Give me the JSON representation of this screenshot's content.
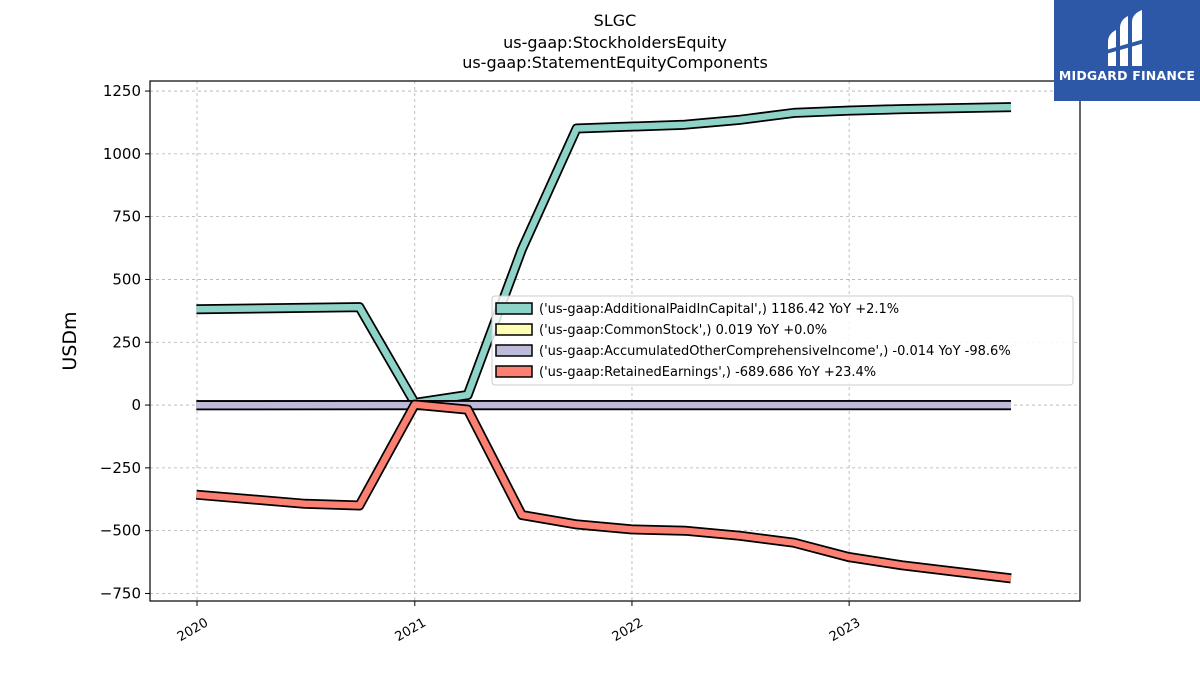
{
  "titles": [
    "SLGC",
    "us-gaap:StockholdersEquity",
    "us-gaap:StatementEquityComponents"
  ],
  "logo": {
    "name": "MIDGARD FINANCE",
    "icon": "midgard-logo-icon",
    "background": "#2d58a8"
  },
  "chart_data": {
    "type": "line",
    "title": "SLGC\nus-gaap:StockholdersEquity\nus-gaap:StatementEquityComponents",
    "ylabel": "USDm",
    "xlabel": "",
    "ylim": [
      -780,
      1290
    ],
    "xlim": [
      "2019-10-14",
      "2024-01-24"
    ],
    "yticks": [
      1250,
      1000,
      750,
      500,
      250,
      0,
      -250,
      -500,
      -750
    ],
    "ytick_labels": [
      "1250",
      "1000",
      "750",
      "500",
      "250",
      "0",
      "−250",
      "−500",
      "−750"
    ],
    "xticks": [
      "2020-01-01",
      "2021-01-01",
      "2022-01-01",
      "2023-01-01"
    ],
    "xtick_labels": [
      "2020",
      "2021",
      "2022",
      "2023"
    ],
    "grid": true,
    "legend_position": "center-right",
    "series": [
      {
        "name": "('us-gaap:AdditionalPaidInCapital',) 1186.42 YoY +2.1%",
        "color": "#8dd3c7",
        "points": [
          [
            "2019-12-31",
            381
          ],
          [
            "2020-09-30",
            390
          ],
          [
            "2021-01-01",
            8
          ],
          [
            "2021-03-31",
            40
          ],
          [
            "2021-06-30",
            620
          ],
          [
            "2021-09-30",
            1101
          ],
          [
            "2022-03-31",
            1116
          ],
          [
            "2022-06-30",
            1135
          ],
          [
            "2022-09-30",
            1163
          ],
          [
            "2022-12-31",
            1172
          ],
          [
            "2023-03-31",
            1178
          ],
          [
            "2023-09-30",
            1186
          ]
        ]
      },
      {
        "name": "('us-gaap:CommonStock',) 0.019 YoY +0.0%",
        "color": "#ffffb3",
        "points": [
          [
            "2019-12-31",
            0.019
          ],
          [
            "2023-09-30",
            0.019
          ]
        ]
      },
      {
        "name": "('us-gaap:AccumulatedOtherComprehensiveIncome',) -0.014 YoY -98.6%",
        "color": "#bebada",
        "points": [
          [
            "2019-12-31",
            -0.5
          ],
          [
            "2023-09-30",
            -0.014
          ]
        ]
      },
      {
        "name": "('us-gaap:RetainedEarnings',) -689.686 YoY +23.4%",
        "color": "#fb8072",
        "points": [
          [
            "2019-12-31",
            -357
          ],
          [
            "2020-06-30",
            -393
          ],
          [
            "2020-09-30",
            -400
          ],
          [
            "2021-01-01",
            2
          ],
          [
            "2021-03-31",
            -18
          ],
          [
            "2021-06-30",
            -438
          ],
          [
            "2021-09-30",
            -475
          ],
          [
            "2021-12-31",
            -495
          ],
          [
            "2022-03-31",
            -500
          ],
          [
            "2022-06-30",
            -520
          ],
          [
            "2022-09-30",
            -548
          ],
          [
            "2022-12-31",
            -605
          ],
          [
            "2023-03-31",
            -638
          ],
          [
            "2023-09-30",
            -690
          ]
        ]
      }
    ]
  }
}
